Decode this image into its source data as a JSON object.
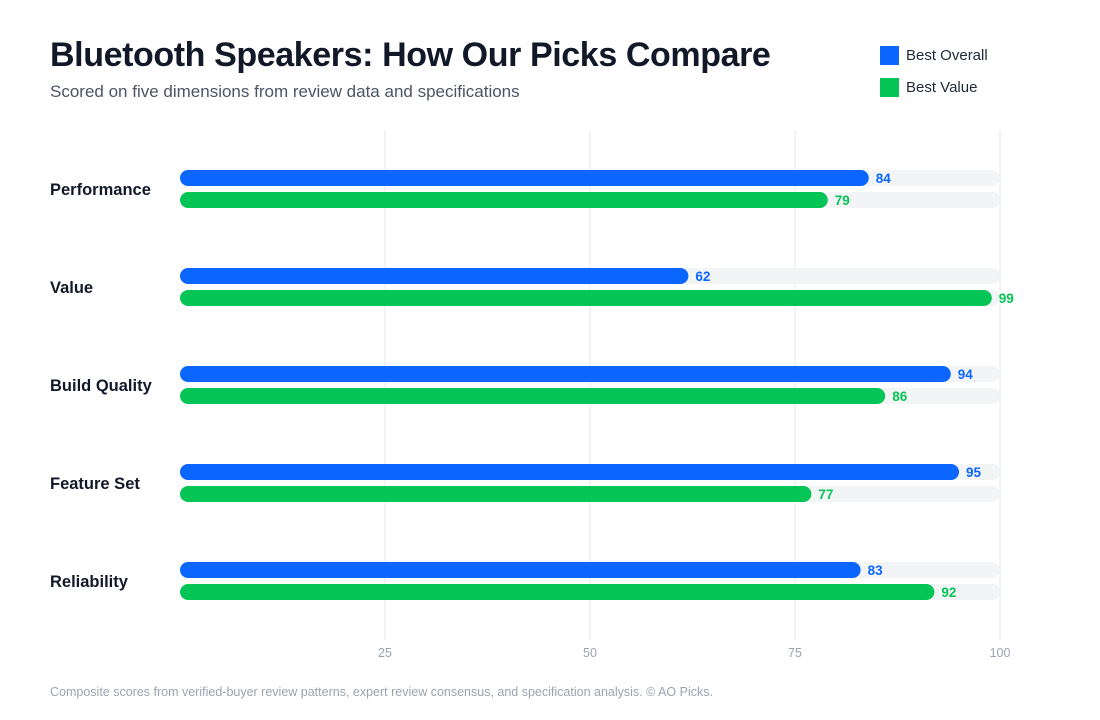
{
  "title": "Bluetooth Speakers: How Our Picks Compare",
  "subtitle": "Scored on five dimensions from review data and specifications",
  "footnote": "Composite scores from verified-buyer review patterns, expert review consensus, and specification analysis. © AO Picks.",
  "colors": {
    "best_overall": "#0a66ff",
    "best_value": "#05c556",
    "track": "#f3f4f6",
    "grid": "#e5e7eb",
    "tick": "#9ca3af",
    "category": "#111827"
  },
  "chart_data": {
    "type": "bar",
    "orientation": "horizontal",
    "categories": [
      "Performance",
      "Value",
      "Build Quality",
      "Feature Set",
      "Reliability"
    ],
    "series": [
      {
        "name": "Best Overall",
        "values": [
          84,
          62,
          94,
          95,
          83
        ]
      },
      {
        "name": "Best Value",
        "values": [
          79,
          99,
          86,
          77,
          92
        ]
      }
    ],
    "xlim": [
      0,
      100
    ],
    "xticks": [
      25,
      50,
      75,
      100
    ],
    "grid": true,
    "legend_position": "top-right",
    "data_labels": true
  }
}
